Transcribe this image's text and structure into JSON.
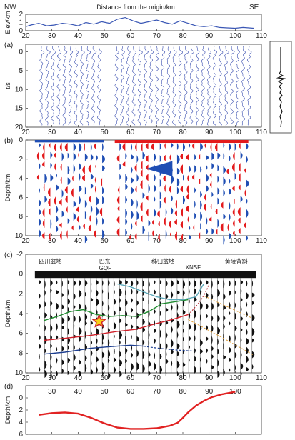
{
  "figure": {
    "top_label_left": "NW",
    "top_label_center": "Distance from the origin/km",
    "top_label_right": "SE",
    "colors": {
      "nw_se": "#3a57b5",
      "wiggle": "#3a4fb0",
      "positive": "#e31a1c",
      "negative": "#1f4eb4",
      "fill_black": "#111111"
    }
  },
  "chart_data": [
    {
      "id": "elevation",
      "type": "line",
      "ylabel": "Elev/km",
      "xlim": [
        20,
        110
      ],
      "ylim": [
        0,
        2
      ],
      "xticks": [
        "20",
        "30",
        "40",
        "50",
        "60",
        "70",
        "80",
        "90",
        "100",
        "110"
      ],
      "yticks": [
        "0",
        "1",
        "2"
      ],
      "x": [
        20,
        22,
        25,
        28,
        31,
        34,
        37,
        40,
        43,
        46,
        49,
        52,
        55,
        58,
        61,
        64,
        67,
        70,
        73,
        76,
        79,
        82,
        85,
        88,
        91,
        94,
        97,
        100,
        103,
        107
      ],
      "y": [
        0.5,
        0.7,
        0.9,
        0.6,
        0.7,
        0.9,
        0.8,
        0.6,
        1.0,
        0.8,
        1.1,
        0.9,
        1.4,
        1.6,
        1.2,
        0.9,
        1.1,
        1.3,
        1.0,
        0.8,
        1.2,
        0.9,
        0.6,
        0.5,
        0.6,
        0.4,
        0.35,
        0.3,
        0.4,
        0.3
      ]
    },
    {
      "id": "receiver-functions",
      "panel": "(a)",
      "type": "line",
      "ylabel": "t/s",
      "xlim": [
        20,
        110
      ],
      "ylim": [
        -2,
        20
      ],
      "xticks": [
        "20",
        "30",
        "40",
        "50",
        "60",
        "70",
        "80",
        "90",
        "100",
        "110"
      ],
      "yticks": [
        "0",
        "5",
        "10",
        "15",
        "20"
      ]
    },
    {
      "id": "migration-b",
      "panel": "(b)",
      "type": "area",
      "ylabel": "Depth/km",
      "xlim": [
        20,
        110
      ],
      "ylim": [
        0,
        10
      ],
      "xticks": [
        "20",
        "30",
        "40",
        "50",
        "60",
        "70",
        "80",
        "90",
        "100",
        "110"
      ],
      "yticks": [
        "0",
        "2",
        "4",
        "6",
        "8",
        "10"
      ]
    },
    {
      "id": "migration-c",
      "panel": "(c)",
      "type": "area",
      "ylabel": "Depth/km",
      "xlim": [
        20,
        110
      ],
      "ylim": [
        -2,
        10
      ],
      "xticks": [
        "20",
        "30",
        "40",
        "50",
        "60",
        "70",
        "80",
        "90",
        "100",
        "110"
      ],
      "yticks": [
        "-2",
        "0",
        "2",
        "4",
        "6",
        "8",
        "10"
      ],
      "annotations": [
        {
          "text": "四川盆地",
          "color": "#2e8b3a"
        },
        {
          "text": "巴东",
          "color": "#333333"
        },
        {
          "text": "GQF",
          "color": "#d0202a"
        },
        {
          "text": "秭归盆地",
          "color": "#5aa7b8"
        },
        {
          "text": "XNSF",
          "color": "#d0202a"
        },
        {
          "text": "黄陵背斜",
          "color": "#e08a2a"
        }
      ],
      "interfaces": [
        {
          "name": "green",
          "color": "#1d8a2d",
          "x": [
            27,
            32,
            37,
            42,
            47,
            52,
            57,
            62,
            67,
            72,
            77,
            82
          ],
          "y": [
            4.7,
            4.3,
            3.8,
            3.6,
            4.1,
            4.3,
            4.2,
            4.3,
            3.8,
            3.0,
            2.8,
            2.6
          ]
        },
        {
          "name": "red",
          "color": "#d0202a",
          "x": [
            27,
            35,
            45,
            55,
            62,
            70,
            76,
            82
          ],
          "y": [
            6.7,
            6.5,
            6.2,
            5.8,
            5.6,
            5.0,
            4.6,
            4.1
          ]
        },
        {
          "name": "blue",
          "color": "#1c3d8f",
          "x": [
            27,
            35,
            45,
            55,
            60,
            65
          ],
          "y": [
            8.1,
            7.9,
            7.5,
            7.3,
            7.2,
            7.3
          ]
        },
        {
          "name": "cyan",
          "color": "#5aa7b8",
          "x": [
            55,
            60,
            65,
            70,
            75,
            80,
            85,
            88
          ],
          "y": [
            1.0,
            1.3,
            1.8,
            2.3,
            2.6,
            2.6,
            2.3,
            1.0
          ]
        }
      ]
    },
    {
      "id": "depth-profile",
      "panel": "(d)",
      "type": "line",
      "ylabel": "Depth/km",
      "xlim": [
        20,
        110
      ],
      "ylim": [
        -2,
        6
      ],
      "xticks": [
        "30",
        "40",
        "50",
        "60",
        "70",
        "80",
        "90",
        "100"
      ],
      "yticks": [
        "0",
        "2",
        "4",
        "6"
      ],
      "x": [
        25,
        30,
        35,
        40,
        45,
        50,
        55,
        60,
        65,
        70,
        75,
        78,
        80,
        82,
        85,
        88,
        91,
        95,
        100
      ],
      "y": [
        2.8,
        2.5,
        2.4,
        2.6,
        3.3,
        4.2,
        4.9,
        5.1,
        5.1,
        5.0,
        4.6,
        4.1,
        3.3,
        2.4,
        1.3,
        0.5,
        -0.1,
        -0.6,
        -1.0
      ]
    }
  ]
}
